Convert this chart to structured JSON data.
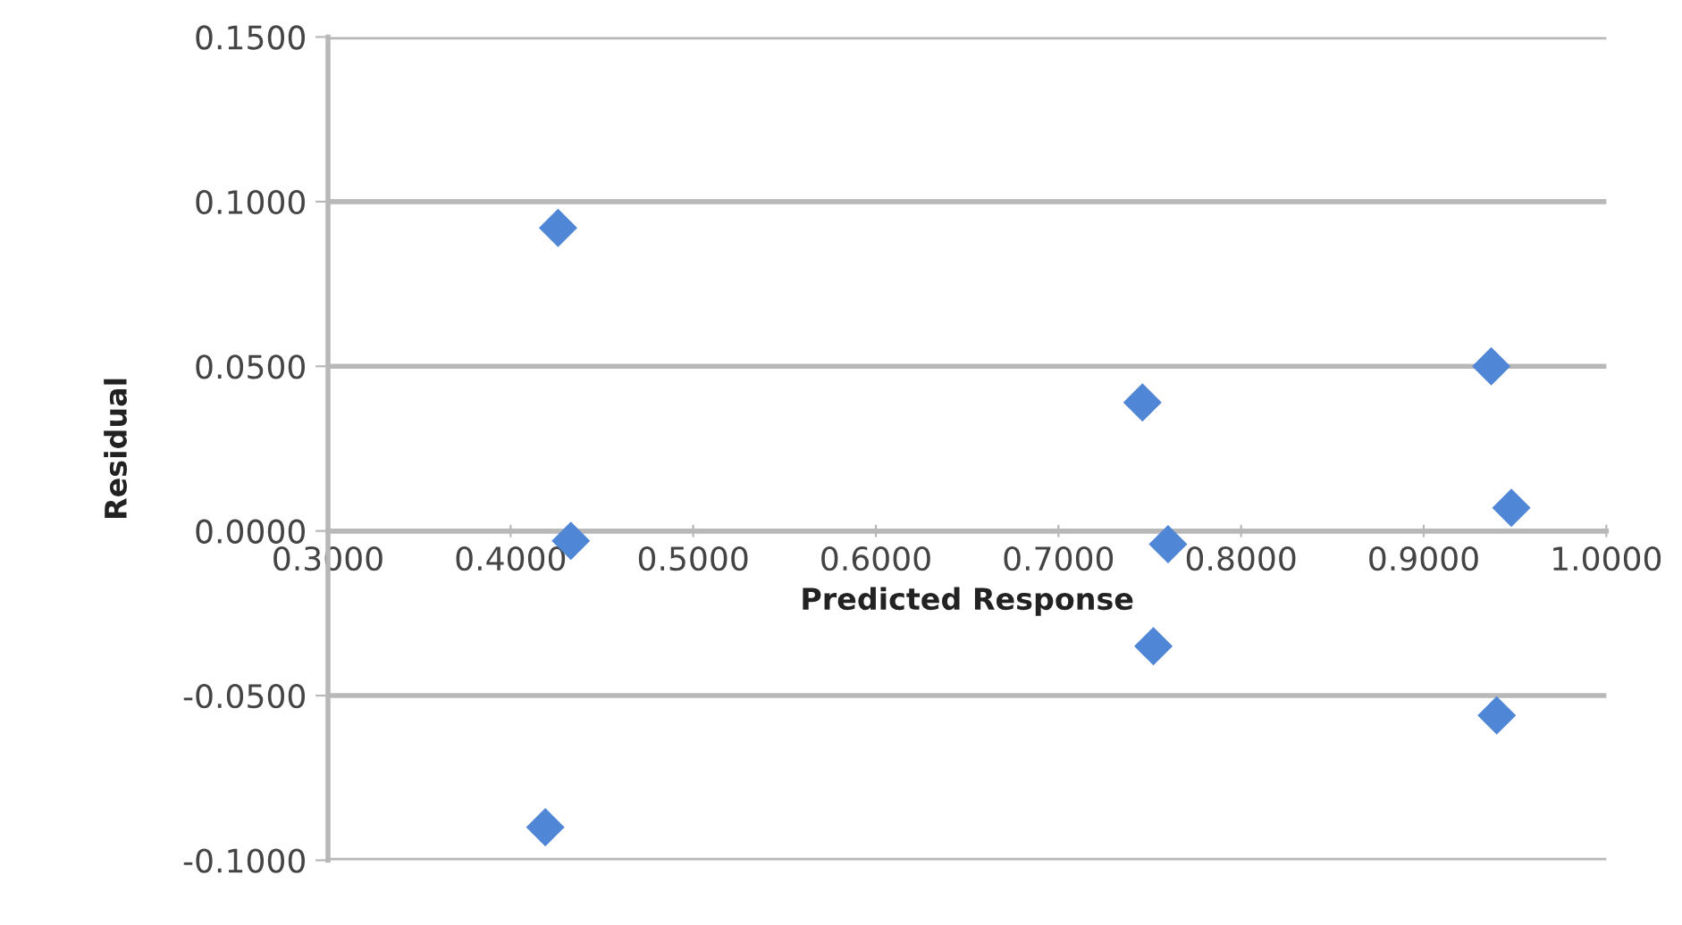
{
  "chart_data": {
    "type": "scatter",
    "xlabel": "Predicted Response",
    "ylabel": "Residual",
    "x": [
      0.426,
      0.433,
      0.419,
      0.746,
      0.76,
      0.752,
      0.937,
      0.948,
      0.94
    ],
    "series": [
      {
        "color": "#4f86d6",
        "values": [
          0.092,
          -0.003,
          -0.09,
          0.039,
          -0.004,
          -0.035,
          0.05,
          0.007,
          -0.056
        ]
      }
    ],
    "xlim": [
      0.3,
      1.0
    ],
    "ylim": [
      -0.1,
      0.15
    ],
    "xticks": [
      {
        "value": 0.3,
        "label": "0.3000"
      },
      {
        "value": 0.4,
        "label": "0.4000"
      },
      {
        "value": 0.5,
        "label": "0.5000"
      },
      {
        "value": 0.6,
        "label": "0.6000"
      },
      {
        "value": 0.7,
        "label": "0.7000"
      },
      {
        "value": 0.8,
        "label": "0.8000"
      },
      {
        "value": 0.9,
        "label": "0.9000"
      },
      {
        "value": 1.0,
        "label": "1.0000"
      }
    ],
    "yticks": [
      {
        "value": -0.1,
        "label": "-0.1000"
      },
      {
        "value": -0.05,
        "label": "-0.0500"
      },
      {
        "value": 0,
        "label": "0.0000"
      },
      {
        "value": 0.05,
        "label": "0.0500"
      },
      {
        "value": 0.1,
        "label": "0.1000"
      },
      {
        "value": 0.15,
        "label": "0.1500"
      }
    ],
    "grid": "y",
    "marker": "diamond"
  }
}
